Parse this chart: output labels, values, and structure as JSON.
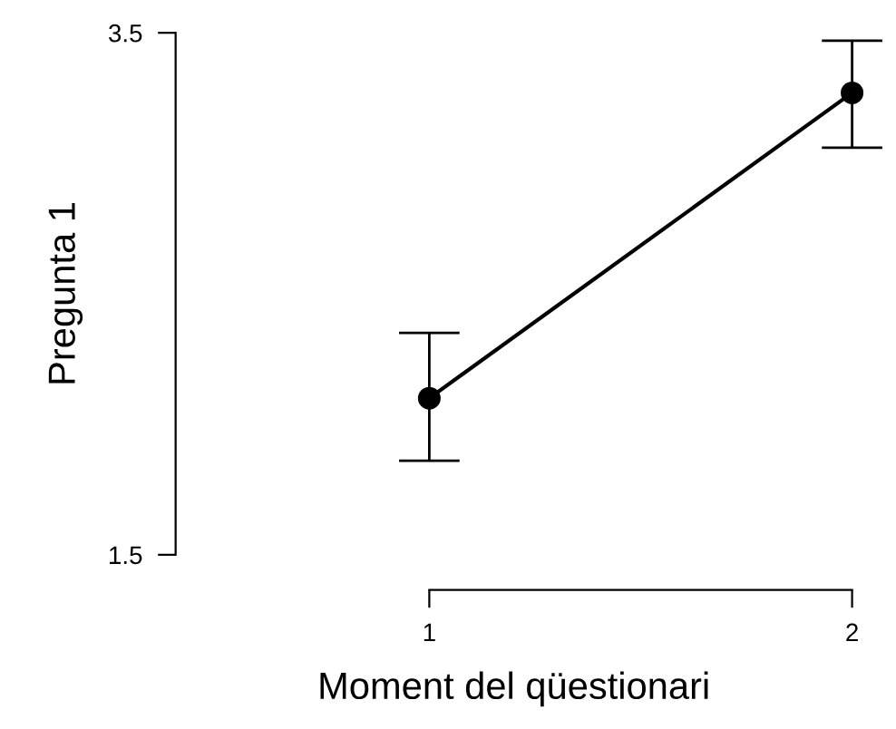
{
  "chart_data": {
    "type": "line",
    "xlabel": "Moment del qüestionari",
    "ylabel": "Pregunta 1",
    "x": [
      1,
      2
    ],
    "series": [
      {
        "color": "#000000",
        "values": [
          2.1,
          3.27
        ],
        "errors": [
          [
            1.86,
            2.35
          ],
          [
            3.06,
            3.47
          ]
        ]
      }
    ],
    "xlim": [
      0.4,
      2
    ],
    "ylim": [
      1.5,
      3.5
    ],
    "xticks": [
      1,
      2
    ],
    "yticks": [
      1.5,
      3.5
    ],
    "marker": "circle",
    "line_style": "solid",
    "grid": false,
    "legend": false
  }
}
